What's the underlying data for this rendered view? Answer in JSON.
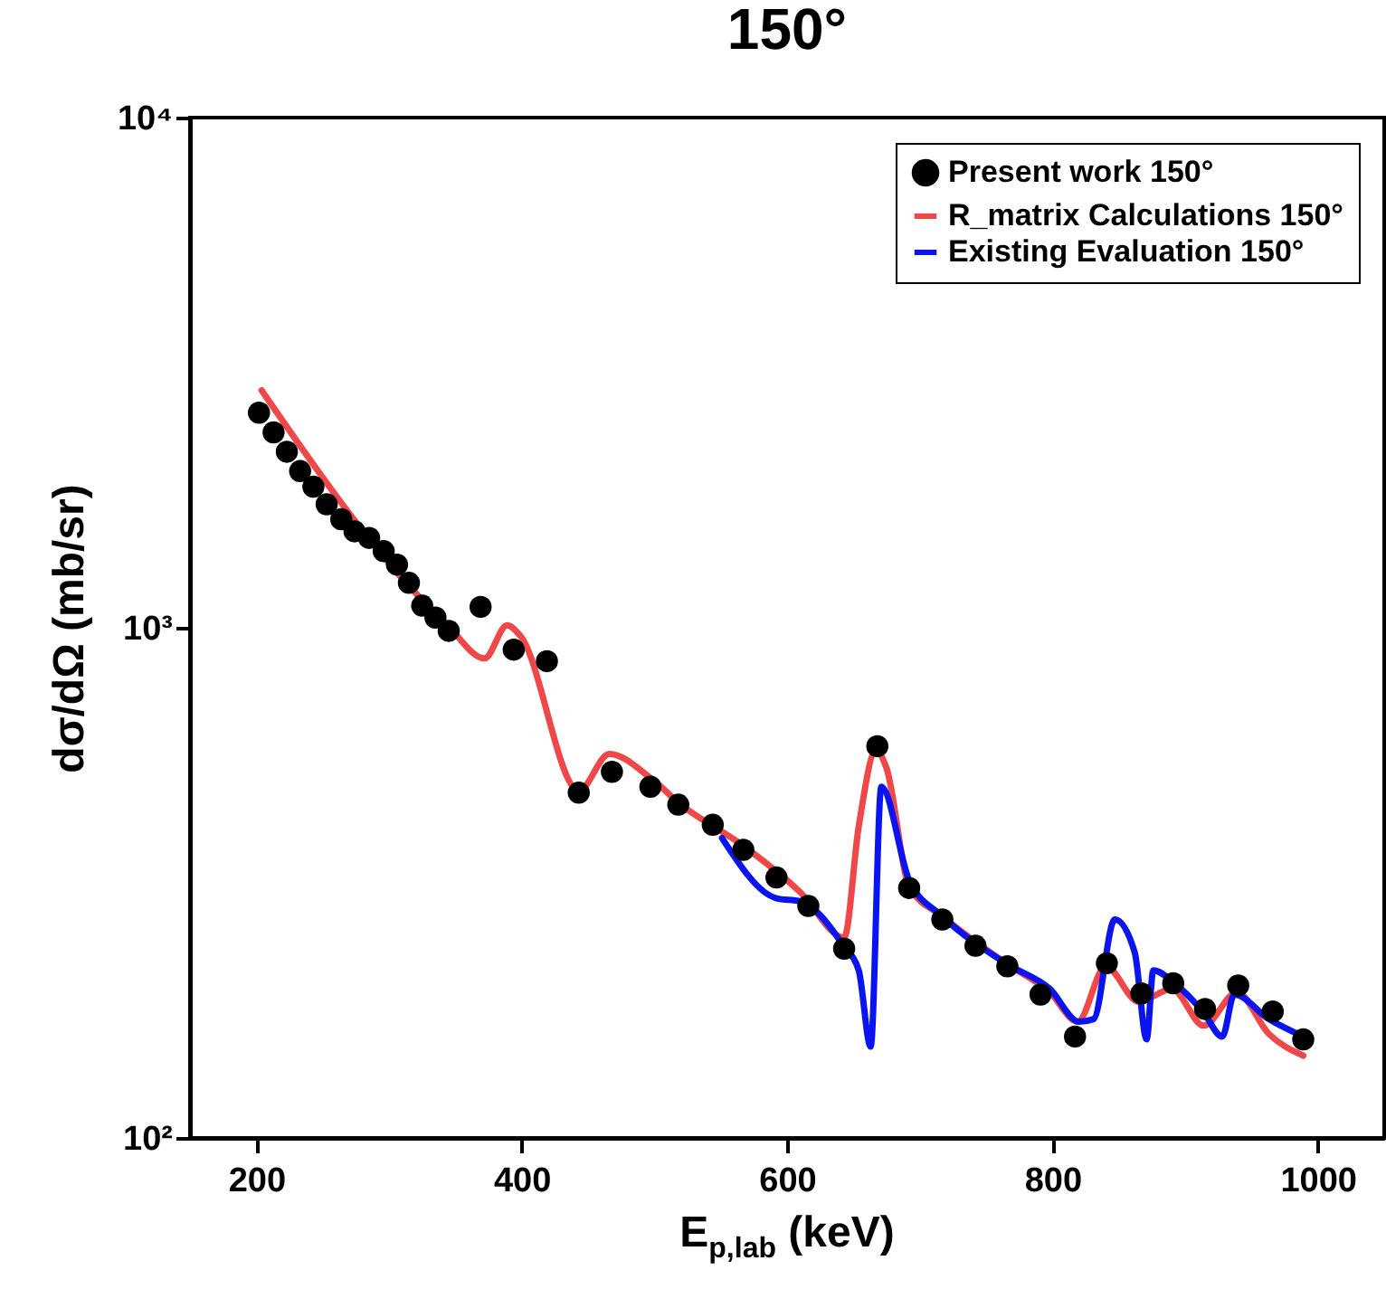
{
  "chart_data": {
    "type": "scatter",
    "title": "150°",
    "xlabel": "E$_{p,lab}$ (keV)",
    "ylabel": "dσ/dΩ (mb/sr)",
    "log": "y",
    "xlim": [
      150,
      1050
    ],
    "xticks": [
      200,
      400,
      600,
      800,
      1000
    ],
    "ylim": [
      100,
      10000
    ],
    "yticks": [
      {
        "value": 100,
        "label": "10²"
      },
      {
        "value": 1000,
        "label": "10³"
      },
      {
        "value": 10000,
        "label": "10⁴"
      }
    ],
    "grid": false,
    "legend": "top right",
    "series": [
      {
        "name": "Present work 150°",
        "marker": "circle",
        "color": "#000000",
        "x": [
          202,
          213,
          223,
          233,
          243,
          253,
          264,
          274,
          285,
          296,
          306,
          315,
          325,
          335,
          345,
          369,
          394,
          419,
          443,
          468,
          497,
          518,
          544,
          567,
          592,
          616,
          643,
          668,
          692,
          717,
          742,
          766,
          791,
          817,
          841,
          867,
          891,
          915,
          940,
          966,
          989
        ],
        "values": [
          2640,
          2415,
          2213,
          2028,
          1890,
          1746,
          1632,
          1545,
          1500,
          1413,
          1330,
          1225,
          1105,
          1047,
          986,
          1099,
          906,
          860,
          475,
          522,
          488,
          450,
          411,
          367,
          324,
          285,
          235,
          586,
          309,
          268,
          238,
          217,
          191,
          158,
          220,
          192,
          201,
          179,
          199,
          177,
          156
        ]
      },
      {
        "name": "R_matrix Calculations 150°",
        "type": "line",
        "line_style": "solid",
        "color": "#f04848",
        "x": [
          204,
          278,
          314,
          345,
          372,
          389,
          399,
          443,
          466,
          497,
          520,
          565,
          610,
          643,
          654,
          667,
          675,
          692,
          717,
          766,
          798,
          819,
          840,
          865,
          890,
          914,
          939,
          963,
          989
        ],
        "values": [
          2920,
          1575,
          1216,
          1005,
          871,
          1011,
          964,
          479,
          566,
          508,
          450,
          377,
          303,
          247,
          408,
          574,
          530,
          311,
          272,
          219,
          193,
          169,
          217,
          185,
          196,
          166,
          193,
          160,
          145
        ]
      },
      {
        "name": "Existing Evaluation 150°",
        "type": "line",
        "line_style": "solid",
        "color": "#0a14f0",
        "x": [
          551,
          592,
          610,
          643,
          654,
          663,
          671,
          692,
          717,
          766,
          798,
          820,
          831,
          847,
          862,
          871,
          876,
          892,
          914,
          928,
          937,
          963,
          989
        ],
        "values": [
          387,
          295,
          291,
          237,
          213,
          151,
          488,
          320,
          272,
          219,
          196,
          169,
          171,
          268,
          231,
          156,
          213,
          201,
          176,
          158,
          191,
          171,
          158
        ]
      }
    ]
  }
}
